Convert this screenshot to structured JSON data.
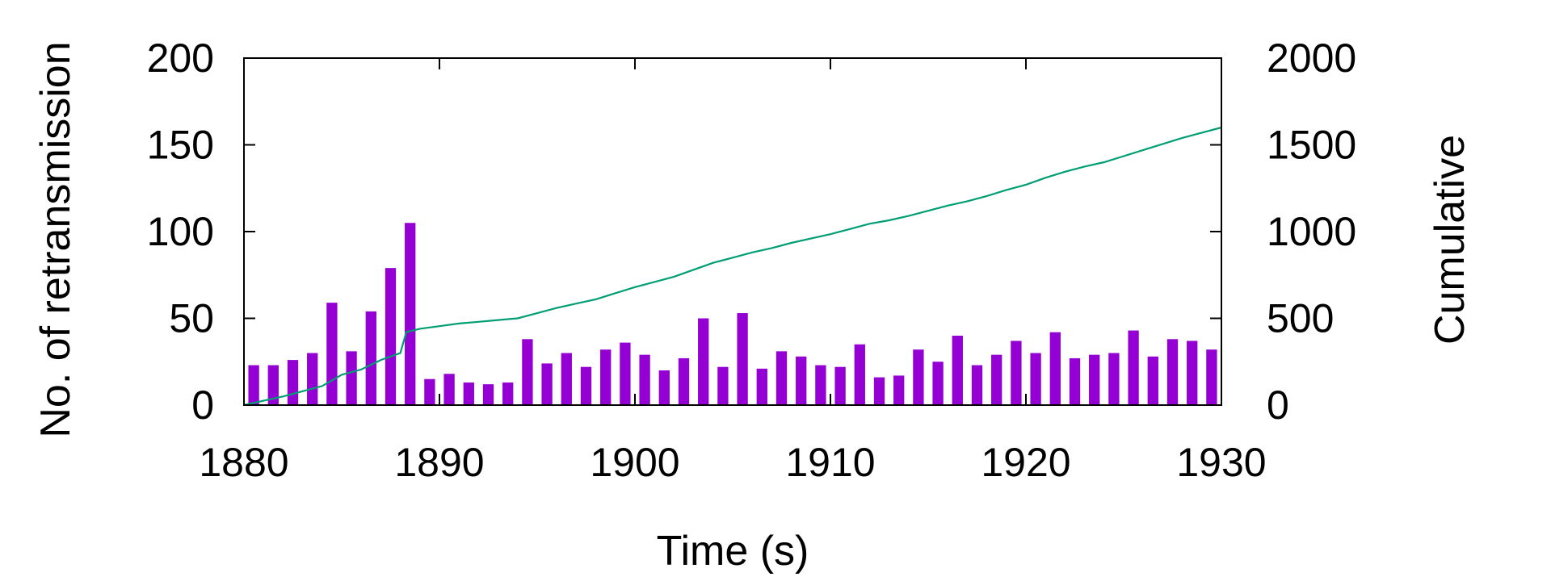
{
  "chart_data": {
    "type": "bar",
    "xlabel": "Time (s)",
    "ylabel": "No. of retransmission",
    "y2label": "Cumulative",
    "xlim": [
      1880,
      1930
    ],
    "ylim": [
      0,
      200
    ],
    "y2lim": [
      0,
      2000
    ],
    "xticks": [
      1880,
      1890,
      1900,
      1910,
      1920,
      1930
    ],
    "yticks": [
      0,
      50,
      100,
      150,
      200
    ],
    "y2ticks": [
      0,
      500,
      1000,
      1500,
      2000
    ],
    "grid": false,
    "bar_color": "#9400D3",
    "line_color": "#009E73",
    "bars": {
      "x": [
        1880,
        1881,
        1882,
        1883,
        1884,
        1885,
        1886,
        1887,
        1888,
        1889,
        1890,
        1891,
        1892,
        1893,
        1894,
        1895,
        1896,
        1897,
        1898,
        1899,
        1900,
        1901,
        1902,
        1903,
        1904,
        1905,
        1906,
        1907,
        1908,
        1909,
        1910,
        1911,
        1912,
        1913,
        1914,
        1915,
        1916,
        1917,
        1918,
        1919,
        1920,
        1921,
        1922,
        1923,
        1924,
        1925,
        1926,
        1927,
        1928,
        1929
      ],
      "values": [
        23,
        23,
        26,
        30,
        59,
        31,
        54,
        79,
        105,
        15,
        18,
        13,
        12,
        13,
        38,
        24,
        30,
        22,
        32,
        36,
        29,
        20,
        27,
        50,
        22,
        53,
        21,
        31,
        28,
        23,
        22,
        35,
        16,
        17,
        32,
        25,
        40,
        23,
        29,
        37,
        30,
        42,
        27,
        29,
        30,
        43,
        28,
        38,
        37,
        32
      ]
    },
    "cumulative": {
      "x": [
        1880,
        1881,
        1882,
        1883,
        1884,
        1885,
        1886,
        1887,
        1888,
        1888.3,
        1889,
        1890,
        1891,
        1892,
        1893,
        1894,
        1895,
        1896,
        1897,
        1898,
        1899,
        1900,
        1901,
        1902,
        1903,
        1904,
        1905,
        1906,
        1907,
        1908,
        1909,
        1910,
        1911,
        1912,
        1913,
        1914,
        1915,
        1916,
        1917,
        1918,
        1919,
        1920,
        1921,
        1922,
        1923,
        1924,
        1925,
        1926,
        1927,
        1928,
        1929,
        1930
      ],
      "values": [
        0,
        25,
        50,
        80,
        110,
        175,
        205,
        260,
        300,
        420,
        440,
        455,
        470,
        480,
        490,
        500,
        530,
        560,
        585,
        610,
        645,
        680,
        710,
        740,
        780,
        820,
        850,
        880,
        905,
        935,
        960,
        985,
        1015,
        1045,
        1065,
        1090,
        1120,
        1150,
        1175,
        1205,
        1240,
        1270,
        1310,
        1345,
        1375,
        1400,
        1435,
        1470,
        1505,
        1540,
        1570,
        1600
      ]
    }
  }
}
